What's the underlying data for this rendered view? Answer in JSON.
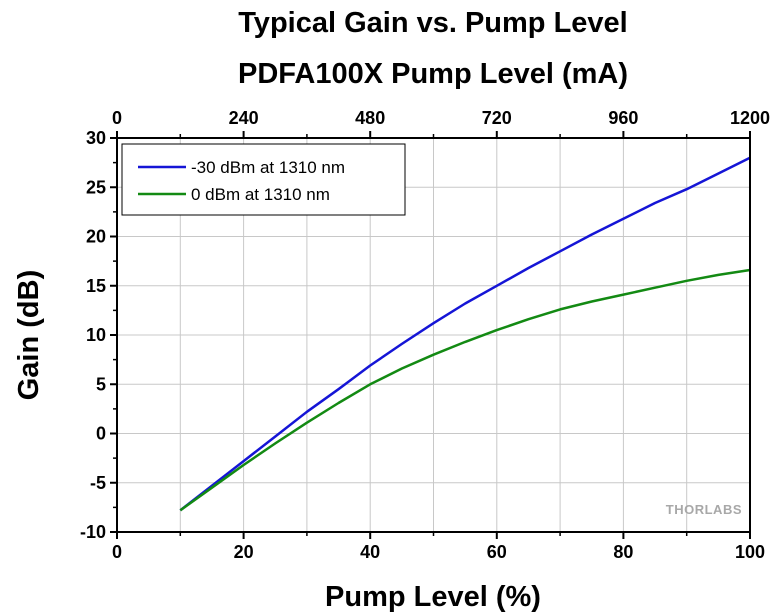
{
  "chart_data": {
    "type": "line",
    "title": "Typical Gain vs. Pump Level",
    "secondary_x_label": "PDFA100X Pump Level (mA)",
    "xlabel": "Pump Level (%)",
    "ylabel": "Gain (dB)",
    "xlim": [
      0,
      100
    ],
    "ylim": [
      -10,
      30
    ],
    "x_ticks": [
      "0",
      "20",
      "40",
      "60",
      "80",
      "100"
    ],
    "y_ticks": [
      "-10",
      "-5",
      "0",
      "5",
      "10",
      "15",
      "20",
      "25",
      "30"
    ],
    "top_x_lim": [
      0,
      1200
    ],
    "top_x_ticks": [
      "0",
      "240",
      "480",
      "720",
      "960",
      "1200"
    ],
    "grid": true,
    "legend_position": "top-left",
    "series": [
      {
        "name": "-30 dBm at 1310 nm",
        "color": "#1515d6",
        "x": [
          10,
          15,
          20,
          25,
          30,
          35,
          40,
          45,
          50,
          55,
          60,
          65,
          70,
          75,
          80,
          85,
          90,
          95,
          100
        ],
        "y": [
          -7.8,
          -5.3,
          -2.8,
          -0.3,
          2.2,
          4.5,
          6.9,
          9.1,
          11.2,
          13.2,
          15.0,
          16.8,
          18.5,
          20.2,
          21.8,
          23.4,
          24.8,
          26.4,
          28.0
        ]
      },
      {
        "name": "0 dBm at 1310 nm",
        "color": "#138a13",
        "x": [
          10,
          15,
          20,
          25,
          30,
          35,
          40,
          45,
          50,
          55,
          60,
          65,
          70,
          75,
          80,
          85,
          90,
          95,
          100
        ],
        "y": [
          -7.8,
          -5.5,
          -3.2,
          -1.0,
          1.1,
          3.1,
          5.0,
          6.6,
          8.0,
          9.3,
          10.5,
          11.6,
          12.6,
          13.4,
          14.1,
          14.8,
          15.5,
          16.1,
          16.6
        ]
      }
    ]
  },
  "watermark": "THORLABS"
}
